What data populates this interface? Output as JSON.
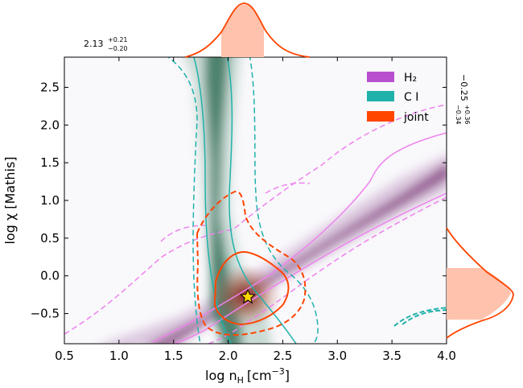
{
  "chart_data": {
    "type": "scatter",
    "xlabel_main": "log n",
    "xlabel_sub": "H",
    "xlabel_unit": "[cm",
    "xlabel_exp": "−3",
    "xlabel_close": "]",
    "ylabel": "log χ [Mathis]",
    "xlim": [
      0.5,
      4.0
    ],
    "ylim": [
      -0.9,
      2.9
    ],
    "xticks": [
      0.5,
      1.0,
      1.5,
      2.0,
      2.5,
      3.0,
      3.5,
      4.0
    ],
    "yticks": [
      -0.5,
      0.0,
      0.5,
      1.0,
      1.5,
      2.0,
      2.5
    ],
    "xtick_labels": [
      "0.5",
      "1.0",
      "1.5",
      "2.0",
      "2.5",
      "3.0",
      "3.5",
      "4.0"
    ],
    "ytick_labels": [
      "−0.5",
      "0.0",
      "0.5",
      "1.0",
      "1.5",
      "2.0",
      "2.5"
    ],
    "legend": [
      {
        "label": "H₂",
        "color": "#b84fcf"
      },
      {
        "label": "C I",
        "color": "#20b2aa"
      },
      {
        "label": "joint",
        "color": "#ff4500"
      }
    ],
    "legend_placement": "top-right",
    "best_fit": {
      "x": 2.18,
      "y": -0.28
    },
    "marginal_x": {
      "median": 2.13,
      "plus": 0.21,
      "minus": 0.2,
      "text_main": "2.13",
      "text_plus": "+0.21",
      "text_minus": "−0.20"
    },
    "marginal_y": {
      "median": -0.25,
      "plus": 0.36,
      "minus": 0.34,
      "text_main": "−0.25",
      "text_plus": "+0.36",
      "text_minus": "−0.34"
    },
    "colors": {
      "h2": "#b84fcf",
      "ci": "#20b2aa",
      "joint": "#ff4500",
      "marginal_fill": "#ffc2ad",
      "h2_contour": "#ee82ee"
    }
  }
}
